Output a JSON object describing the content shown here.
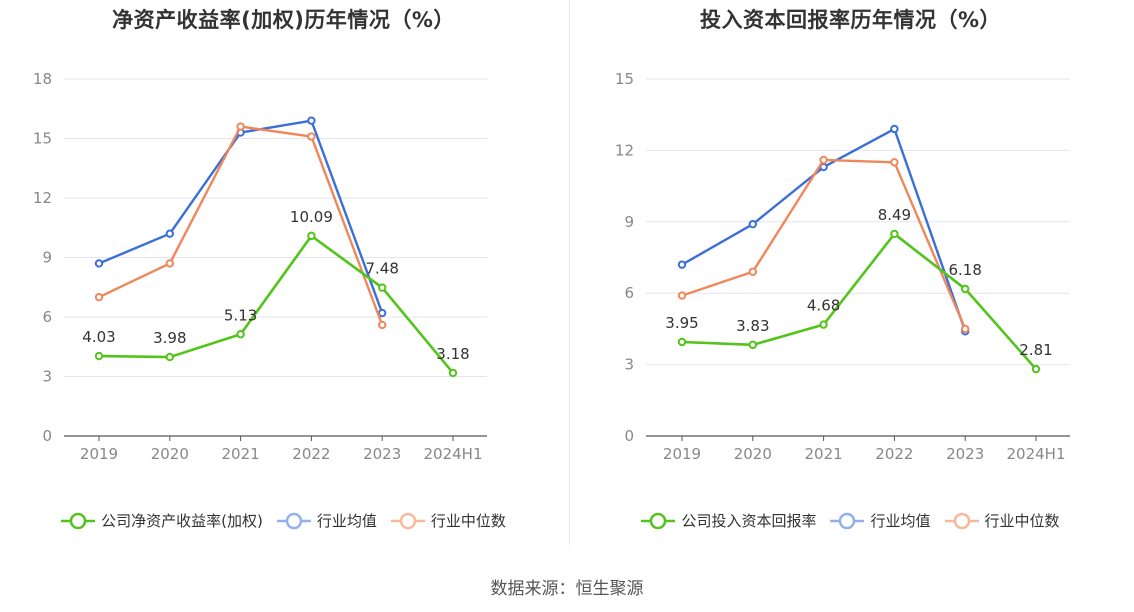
{
  "source": "数据来源：恒生聚源",
  "chart_data": [
    {
      "type": "line",
      "title": "净资产收益率(加权)历年情况（%）",
      "categories": [
        "2019",
        "2020",
        "2021",
        "2022",
        "2023",
        "2024H1"
      ],
      "ylim": [
        0,
        18
      ],
      "yticks": [
        0,
        3,
        6,
        9,
        12,
        15,
        18
      ],
      "grid": true,
      "legend_position": "bottom",
      "series": [
        {
          "name": "公司净资产收益率(加权)",
          "color": "#52c41a",
          "values": [
            4.03,
            3.98,
            5.13,
            10.09,
            7.48,
            3.18
          ],
          "labels": [
            "4.03",
            "3.98",
            "5.13",
            "10.09",
            "7.48",
            "3.18"
          ]
        },
        {
          "name": "行业均值",
          "color": "#3b6fd8",
          "values": [
            8.7,
            10.2,
            15.3,
            15.9,
            6.2,
            null
          ]
        },
        {
          "name": "行业中位数",
          "color": "#f0875a",
          "values": [
            7.0,
            8.7,
            15.6,
            15.1,
            5.6,
            null
          ]
        }
      ]
    },
    {
      "type": "line",
      "title": "投入资本回报率历年情况（%）",
      "categories": [
        "2019",
        "2020",
        "2021",
        "2022",
        "2023",
        "2024H1"
      ],
      "ylim": [
        0,
        15
      ],
      "yticks": [
        0,
        3,
        6,
        9,
        12,
        15
      ],
      "grid": true,
      "legend_position": "bottom",
      "series": [
        {
          "name": "公司投入资本回报率",
          "color": "#52c41a",
          "values": [
            3.95,
            3.83,
            4.68,
            8.49,
            6.18,
            2.81
          ],
          "labels": [
            "3.95",
            "3.83",
            "4.68",
            "8.49",
            "6.18",
            "2.81"
          ]
        },
        {
          "name": "行业均值",
          "color": "#3b6fd8",
          "values": [
            7.2,
            8.9,
            11.3,
            12.9,
            4.4,
            null
          ]
        },
        {
          "name": "行业中位数",
          "color": "#f0875a",
          "values": [
            5.9,
            6.9,
            11.6,
            11.5,
            4.5,
            null
          ]
        }
      ]
    }
  ]
}
